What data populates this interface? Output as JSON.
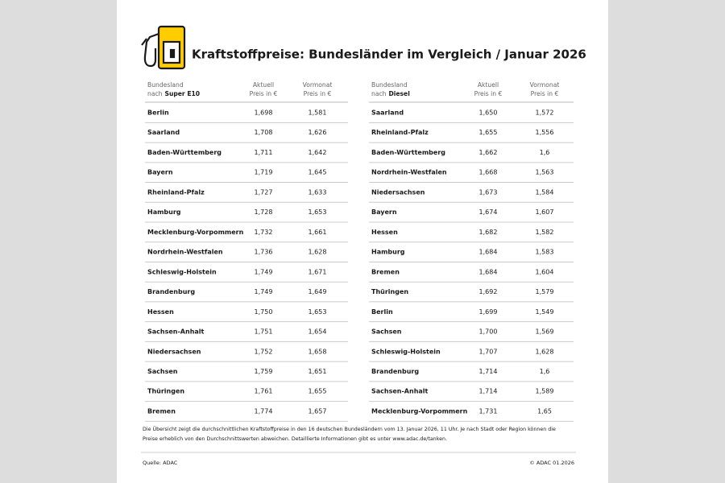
{
  "header": {
    "title": "Kraftstoffpreise: Bundesländer im Vergleich / Januar 2026"
  },
  "tables": [
    {
      "columns": {
        "name": [
          "Bundesland",
          "nach",
          "Super E10"
        ],
        "current": [
          "Aktuell",
          "Preis in €"
        ],
        "previous": [
          "Vormonat",
          "Preis in €"
        ]
      },
      "rows": [
        [
          "Berlin",
          "1,698",
          "1,581"
        ],
        [
          "Saarland",
          "1,708",
          "1,626"
        ],
        [
          "Baden-Württemberg",
          "1,711",
          "1,642"
        ],
        [
          "Bayern",
          "1,719",
          "1,645"
        ],
        [
          "Rheinland-Pfalz",
          "1,727",
          "1,633"
        ],
        [
          "Hamburg",
          "1,728",
          "1,653"
        ],
        [
          "Mecklenburg-Vorpommern",
          "1,732",
          "1,661"
        ],
        [
          "Nordrhein-Westfalen",
          "1,736",
          "1,628"
        ],
        [
          "Schleswig-Holstein",
          "1,749",
          "1,671"
        ],
        [
          "Brandenburg",
          "1,749",
          "1,649"
        ],
        [
          "Hessen",
          "1,750",
          "1,653"
        ],
        [
          "Sachsen-Anhalt",
          "1,751",
          "1,654"
        ],
        [
          "Niedersachsen",
          "1,752",
          "1,658"
        ],
        [
          "Sachsen",
          "1,759",
          "1,651"
        ],
        [
          "Thüringen",
          "1,761",
          "1,655"
        ],
        [
          "Bremen",
          "1,774",
          "1,657"
        ]
      ]
    },
    {
      "columns": {
        "name": [
          "Bundesland",
          "nach",
          "Diesel"
        ],
        "current": [
          "Aktuell",
          "Preis in €"
        ],
        "previous": [
          "Vormonat",
          "Preis in €"
        ]
      },
      "rows": [
        [
          "Saarland",
          "1,650",
          "1,572"
        ],
        [
          "Rheinland-Pfalz",
          "1,655",
          "1,556"
        ],
        [
          "Baden-Württemberg",
          "1,662",
          "1,6"
        ],
        [
          "Nordrhein-Westfalen",
          "1,668",
          "1,563"
        ],
        [
          "Niedersachsen",
          "1,673",
          "1,584"
        ],
        [
          "Bayern",
          "1,674",
          "1,607"
        ],
        [
          "Hessen",
          "1,682",
          "1,582"
        ],
        [
          "Hamburg",
          "1,684",
          "1,583"
        ],
        [
          "Bremen",
          "1,684",
          "1,604"
        ],
        [
          "Thüringen",
          "1,692",
          "1,579"
        ],
        [
          "Berlin",
          "1,699",
          "1,549"
        ],
        [
          "Sachsen",
          "1,700",
          "1,569"
        ],
        [
          "Schleswig-Holstein",
          "1,707",
          "1,628"
        ],
        [
          "Brandenburg",
          "1,714",
          "1,6"
        ],
        [
          "Sachsen-Anhalt",
          "1,714",
          "1,589"
        ],
        [
          "Mecklenburg-Vorpommern",
          "1,731",
          "1,65"
        ]
      ]
    }
  ],
  "footnote": [
    "Die Übersicht zeigt die durchschnittlichen Kraftstoffpreise in den 16 deutschen Bundesländern vom 13. Januar 2026, 11 Uhr. Je nach Stadt oder Region können die",
    "Preise erheblich von den Durchschnittswerten abweichen. Detaillierte Informationen gibt es unter www.adac.de/tanken."
  ],
  "source": "Quelle: ADAC",
  "copyright": "© ADAC 01.2026"
}
